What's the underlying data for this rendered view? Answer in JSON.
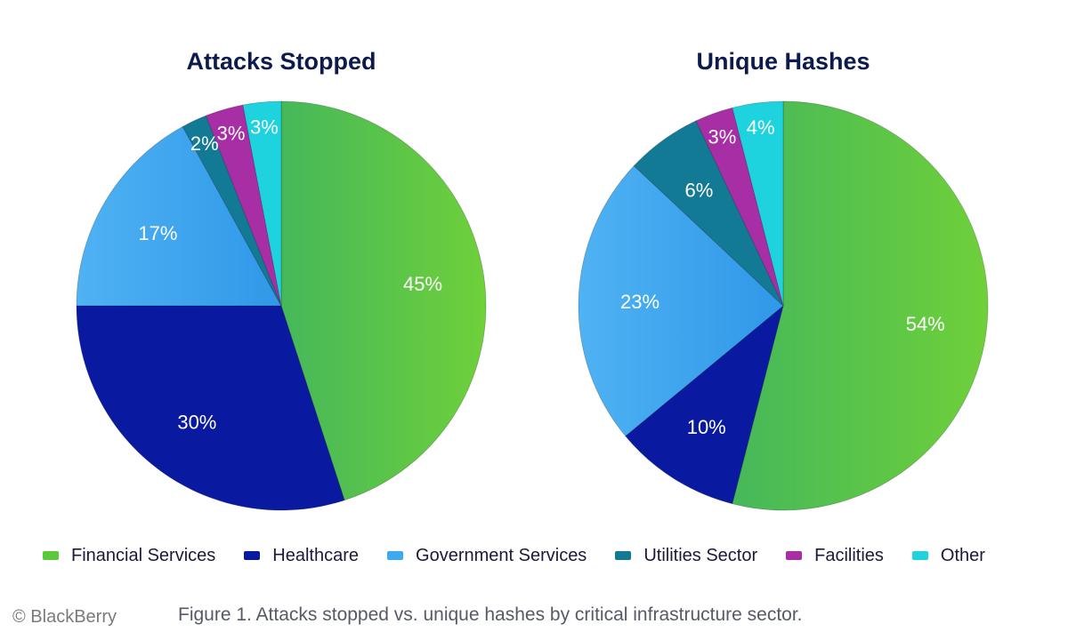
{
  "chart_data": [
    {
      "type": "pie",
      "title": "Attacks Stopped",
      "slices": [
        {
          "category": "Financial Services",
          "value": 45,
          "label": "45%"
        },
        {
          "category": "Healthcare",
          "value": 30,
          "label": "30%"
        },
        {
          "category": "Government Services",
          "value": 17,
          "label": "17%"
        },
        {
          "category": "Utilities Sector",
          "value": 2,
          "label": "2%"
        },
        {
          "category": "Facilities",
          "value": 3,
          "label": "3%"
        },
        {
          "category": "Other",
          "value": 3,
          "label": "3%"
        }
      ]
    },
    {
      "type": "pie",
      "title": "Unique Hashes",
      "slices": [
        {
          "category": "Financial Services",
          "value": 54,
          "label": "54%"
        },
        {
          "category": "Healthcare",
          "value": 10,
          "label": "10%"
        },
        {
          "category": "Government Services",
          "value": 23,
          "label": "23%"
        },
        {
          "category": "Utilities Sector",
          "value": 6,
          "label": "6%"
        },
        {
          "category": "Facilities",
          "value": 3,
          "label": "3%"
        },
        {
          "category": "Other",
          "value": 4,
          "label": "4%"
        }
      ]
    }
  ],
  "legend": [
    {
      "label": "Financial Services",
      "color": "#5cc83b"
    },
    {
      "label": "Healthcare",
      "color": "#0a1aa0"
    },
    {
      "label": "Government Services",
      "color": "#3fa9f0"
    },
    {
      "label": "Utilities Sector",
      "color": "#137a96"
    },
    {
      "label": "Facilities",
      "color": "#a82ea6"
    },
    {
      "label": "Other",
      "color": "#1ed3de"
    }
  ],
  "caption": "Figure 1. Attacks stopped vs. unique hashes by critical infrastructure sector.",
  "copyright": "© BlackBerry"
}
